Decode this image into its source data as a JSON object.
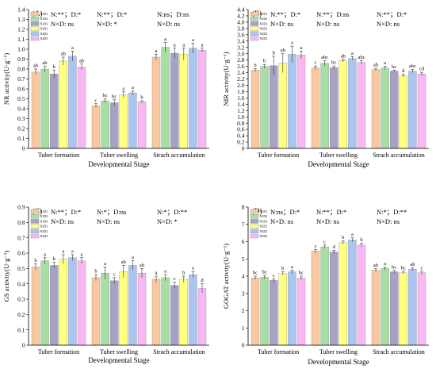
{
  "chart_data": [
    {
      "type": "bar",
      "panel_label": "(A)",
      "title": "",
      "xlabel": "Developmental Stage",
      "ylabel": "NR activity(U·g⁻¹)",
      "ylim": [
        0,
        1.4
      ],
      "yticks": [
        "0",
        "0.1",
        "0.2",
        "0.3",
        "0.4",
        "0.5",
        "0.6",
        "0.7",
        "0.8",
        "0.9",
        "1.0",
        "1.1",
        "1.2",
        "1.3",
        "1.4"
      ],
      "categories": [
        "Tuber formation",
        "Tuber swelling",
        "Strach accumulation"
      ],
      "annotations": [
        {
          "line1": "N:**；D:*",
          "line2": "N×D: ns"
        },
        {
          "line1": "N:**；D:*",
          "line2": "N×D: *"
        },
        {
          "line1": "N:ns；D:ns",
          "line2": "N×D: ns"
        }
      ],
      "series": [
        {
          "name": "N1D1",
          "color": "#FAC8A0",
          "values": [
            0.77,
            0.43,
            0.92
          ],
          "errors": [
            0.03,
            0.02,
            0.03
          ],
          "letters": [
            "ab",
            "c",
            "a"
          ]
        },
        {
          "name": "N1D2",
          "color": "#A8DDA3",
          "values": [
            0.8,
            0.48,
            1.02
          ],
          "errors": [
            0.03,
            0.02,
            0.05
          ],
          "letters": [
            "ab",
            "bc",
            "a"
          ]
        },
        {
          "name": "N1D3",
          "color": "#A7A2C4",
          "values": [
            0.75,
            0.46,
            0.96
          ],
          "errors": [
            0.04,
            0.03,
            0.05
          ],
          "letters": [
            "b",
            "bc",
            "a"
          ]
        },
        {
          "name": "N2D1",
          "color": "#FFFF80",
          "values": [
            0.88,
            0.54,
            0.95
          ],
          "errors": [
            0.04,
            0.03,
            0.06
          ],
          "letters": [
            "ab",
            "a",
            "a"
          ]
        },
        {
          "name": "N2D2",
          "color": "#A9C5F0",
          "values": [
            0.93,
            0.56,
            1.01
          ],
          "errors": [
            0.05,
            0.02,
            0.05
          ],
          "letters": [
            "a",
            "a",
            "a"
          ]
        },
        {
          "name": "N2D3",
          "color": "#F9B8F4",
          "values": [
            0.82,
            0.47,
            0.99
          ],
          "errors": [
            0.03,
            0.01,
            0.02
          ],
          "letters": [
            "ab",
            "b",
            "a"
          ]
        }
      ]
    },
    {
      "type": "bar",
      "panel_label": "(B)",
      "title": "",
      "xlabel": "Developmental Stage",
      "ylabel": "NIR activity(U·g⁻¹)",
      "ylim": [
        0,
        4.4
      ],
      "yticks": [
        "0",
        "0.2",
        "0.4",
        "0.6",
        "0.8",
        "1.0",
        "1.2",
        "1.4",
        "1.6",
        "1.8",
        "2.0",
        "2.2",
        "2.4",
        "2.6",
        "2.8",
        "3.0",
        "3.2",
        "3.4",
        "3.6",
        "3.8",
        "4.0",
        "4.2",
        "4.4"
      ],
      "categories": [
        "Tuber formation",
        "Tuber swelling",
        "Strach accumulation"
      ],
      "annotations": [
        {
          "line1": "N:**；D:*",
          "line2": "N×D: ns"
        },
        {
          "line1": "N:**；D:ns",
          "line2": "N×D: ns"
        },
        {
          "line1": "N:**；D:*",
          "line2": "N×D: ns"
        }
      ],
      "series": [
        {
          "name": "N1D1",
          "color": "#FAC8A0",
          "values": [
            2.48,
            2.55,
            2.5
          ],
          "errors": [
            0.05,
            0.06,
            0.04
          ],
          "letters": [
            "b",
            "c",
            "ab"
          ]
        },
        {
          "name": "N1D2",
          "color": "#A8DDA3",
          "values": [
            2.6,
            2.7,
            2.55
          ],
          "errors": [
            0.06,
            0.08,
            0.05
          ],
          "letters": [
            "b",
            "abc",
            "a"
          ]
        },
        {
          "name": "N1D3",
          "color": "#A7A2C4",
          "values": [
            2.62,
            2.56,
            2.45
          ],
          "errors": [
            0.3,
            0.05,
            0.03
          ],
          "letters": [
            "b",
            "bc",
            "bc"
          ]
        },
        {
          "name": "N2D1",
          "color": "#FFFF80",
          "values": [
            2.7,
            2.78,
            2.3
          ],
          "errors": [
            0.3,
            0.04,
            0.05
          ],
          "letters": [
            "ab",
            "ab",
            "d"
          ]
        },
        {
          "name": "N2D2",
          "color": "#A9C5F0",
          "values": [
            2.98,
            2.85,
            2.45
          ],
          "errors": [
            0.26,
            0.06,
            0.05
          ],
          "letters": [
            "a",
            "a",
            "abc"
          ]
        },
        {
          "name": "N2D3",
          "color": "#F9B8F4",
          "values": [
            2.96,
            2.72,
            2.36
          ],
          "errors": [
            0.12,
            0.06,
            0.05
          ],
          "letters": [
            "a",
            "abc",
            "cd"
          ]
        }
      ]
    },
    {
      "type": "bar",
      "panel_label": "(C)",
      "title": "",
      "xlabel": "Developmental Stage",
      "ylabel": "GS activity(U·g⁻¹)",
      "ylim": [
        0,
        0.9
      ],
      "yticks": [
        "0",
        "0.1",
        "0.2",
        "0.3",
        "0.4",
        "0.5",
        "0.6",
        "0.7",
        "0.8",
        "0.9"
      ],
      "categories": [
        "Tuber formation",
        "Tuber swelling",
        "Strach accumulation"
      ],
      "annotations": [
        {
          "line1": "N:**；D:*",
          "line2": "N×D: ns"
        },
        {
          "line1": "N:*；D:ns",
          "line2": "N×D: ns"
        },
        {
          "line1": "N:*；D:**",
          "line2": "N×D: *"
        }
      ],
      "series": [
        {
          "name": "N1D1",
          "color": "#FAC8A0",
          "values": [
            0.51,
            0.44,
            0.43
          ],
          "errors": [
            0.02,
            0.02,
            0.02
          ],
          "letters": [
            "b",
            "b",
            "a"
          ]
        },
        {
          "name": "N1D2",
          "color": "#A8DDA3",
          "values": [
            0.55,
            0.47,
            0.44
          ],
          "errors": [
            0.02,
            0.04,
            0.02
          ],
          "letters": [
            "a",
            "a",
            "a"
          ]
        },
        {
          "name": "N1D3",
          "color": "#A7A2C4",
          "values": [
            0.52,
            0.42,
            0.39
          ],
          "errors": [
            0.02,
            0.02,
            0.02
          ],
          "letters": [
            "b",
            "c",
            "c"
          ]
        },
        {
          "name": "N2D1",
          "color": "#FFFF80",
          "values": [
            0.56,
            0.48,
            0.43
          ],
          "errors": [
            0.03,
            0.04,
            0.02
          ],
          "letters": [
            "a",
            "ab",
            "b"
          ]
        },
        {
          "name": "N2D2",
          "color": "#A9C5F0",
          "values": [
            0.57,
            0.52,
            0.46
          ],
          "errors": [
            0.02,
            0.03,
            0.02
          ],
          "letters": [
            "a",
            "a",
            "a"
          ]
        },
        {
          "name": "N2D3",
          "color": "#F9B8F4",
          "values": [
            0.55,
            0.47,
            0.37
          ],
          "errors": [
            0.02,
            0.03,
            0.03
          ],
          "letters": [
            "a",
            "ab",
            "d"
          ]
        }
      ]
    },
    {
      "type": "bar",
      "panel_label": "(D)",
      "title": "",
      "xlabel": "Developmental Stage",
      "ylabel": "GOGAT activity(U·g⁻¹)",
      "ylim": [
        0,
        8
      ],
      "yticks": [
        "0",
        "1",
        "2",
        "3",
        "4",
        "5",
        "6",
        "7",
        "8"
      ],
      "categories": [
        "Tuber formation",
        "Tuber swelling",
        "Strach accumulation"
      ],
      "annotations": [
        {
          "line1": "N:ns；D:*",
          "line2": "N×D: ns"
        },
        {
          "line1": "N:**；D:*",
          "line2": "N×D: ns"
        },
        {
          "line1": "N:*；D:**",
          "line2": "N×D: ns"
        }
      ],
      "series": [
        {
          "name": "N1D1",
          "color": "#FAC8A0",
          "values": [
            3.9,
            5.45,
            4.35
          ],
          "errors": [
            0.1,
            0.1,
            0.08
          ],
          "letters": [
            "bc",
            "c",
            "ab"
          ]
        },
        {
          "name": "N1D2",
          "color": "#A8DDA3",
          "values": [
            3.95,
            5.7,
            4.45
          ],
          "errors": [
            0.1,
            0.1,
            0.08
          ],
          "letters": [
            "bc",
            "c",
            "a"
          ]
        },
        {
          "name": "N1D3",
          "color": "#A7A2C4",
          "values": [
            3.75,
            5.4,
            4.25
          ],
          "errors": [
            0.1,
            0.1,
            0.08
          ],
          "letters": [
            "c",
            "d",
            "bc"
          ]
        },
        {
          "name": "N2D1",
          "color": "#FFFF80",
          "values": [
            4.15,
            5.95,
            4.2
          ],
          "errors": [
            0.1,
            0.1,
            0.08
          ],
          "letters": [
            "b",
            "b",
            "bc"
          ]
        },
        {
          "name": "N2D2",
          "color": "#A9C5F0",
          "values": [
            4.25,
            6.1,
            4.4
          ],
          "errors": [
            0.1,
            0.12,
            0.08
          ],
          "letters": [
            "a",
            "a",
            "ab"
          ]
        },
        {
          "name": "N2D3",
          "color": "#F9B8F4",
          "values": [
            3.9,
            5.8,
            4.2
          ],
          "errors": [
            0.1,
            0.1,
            0.08
          ],
          "letters": [
            "bc",
            "b",
            "c"
          ]
        }
      ]
    }
  ]
}
